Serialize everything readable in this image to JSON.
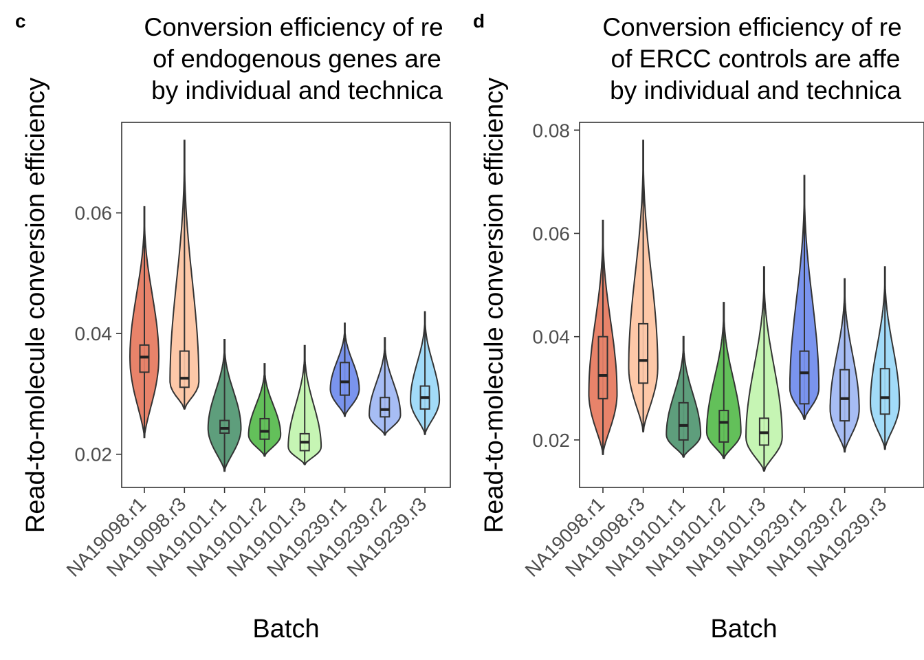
{
  "chart_data": [
    {
      "panel": "c",
      "type": "violin",
      "title_lines": [
        "Conversion efficiency of re",
        "of endogenous genes are",
        "by individual and technica"
      ],
      "xlabel": "Batch",
      "ylabel": "Read-to-molecule conversion efficiency",
      "ylim": [
        0.0145,
        0.075
      ],
      "yticks": [
        0.02,
        0.04,
        0.06
      ],
      "ytick_labels": [
        "0.02",
        "0.04",
        "0.06"
      ],
      "categories": [
        "NA19098.r1",
        "NA19098.r3",
        "NA19101.r1",
        "NA19101.r2",
        "NA19101.r3",
        "NA19239.r1",
        "NA19239.r2",
        "NA19239.r3"
      ],
      "colors": [
        "#E8836A",
        "#FDC8A8",
        "#5E9E7C",
        "#63C05A",
        "#C6F5B4",
        "#7A94EE",
        "#A7BDF4",
        "#A2DBF8"
      ],
      "series": [
        {
          "min": 0.0228,
          "max": 0.061,
          "q1": 0.0336,
          "median": 0.0361,
          "q3": 0.0381,
          "peak": 0.036,
          "width": 0.72
        },
        {
          "min": 0.0275,
          "max": 0.072,
          "q1": 0.0311,
          "median": 0.0326,
          "q3": 0.0371,
          "peak": 0.032,
          "width": 0.72
        },
        {
          "min": 0.0172,
          "max": 0.039,
          "q1": 0.0235,
          "median": 0.0243,
          "q3": 0.0256,
          "peak": 0.0243,
          "width": 0.82
        },
        {
          "min": 0.0197,
          "max": 0.035,
          "q1": 0.0225,
          "median": 0.0238,
          "q3": 0.0259,
          "peak": 0.0232,
          "width": 0.8
        },
        {
          "min": 0.0183,
          "max": 0.038,
          "q1": 0.0206,
          "median": 0.022,
          "q3": 0.0234,
          "peak": 0.0212,
          "width": 0.82
        },
        {
          "min": 0.0263,
          "max": 0.0417,
          "q1": 0.0298,
          "median": 0.032,
          "q3": 0.0352,
          "peak": 0.0308,
          "width": 0.72
        },
        {
          "min": 0.0232,
          "max": 0.0393,
          "q1": 0.0262,
          "median": 0.0274,
          "q3": 0.0294,
          "peak": 0.0265,
          "width": 0.78
        },
        {
          "min": 0.0233,
          "max": 0.0436,
          "q1": 0.0275,
          "median": 0.0294,
          "q3": 0.0313,
          "peak": 0.029,
          "width": 0.72
        }
      ]
    },
    {
      "panel": "d",
      "type": "violin",
      "title_lines": [
        "Conversion efficiency of re",
        "of ERCC controls are affe",
        "by individual and technica"
      ],
      "xlabel": "Batch",
      "ylabel": "Read-to-molecule conversion efficiency",
      "ylim": [
        0.0108,
        0.0815
      ],
      "yticks": [
        0.02,
        0.04,
        0.06,
        0.08
      ],
      "ytick_labels": [
        "0.02",
        "0.04",
        "0.06",
        "0.08"
      ],
      "categories": [
        "NA19098.r1",
        "NA19098.r3",
        "NA19101.r1",
        "NA19101.r2",
        "NA19101.r3",
        "NA19239.r1",
        "NA19239.r2",
        "NA19239.r3"
      ],
      "colors": [
        "#E8836A",
        "#FDC8A8",
        "#5E9E7C",
        "#63C05A",
        "#C6F5B4",
        "#7A94EE",
        "#A7BDF4",
        "#A2DBF8"
      ],
      "series": [
        {
          "min": 0.0172,
          "max": 0.0625,
          "q1": 0.028,
          "median": 0.0325,
          "q3": 0.04,
          "peak": 0.029,
          "width": 0.7
        },
        {
          "min": 0.0216,
          "max": 0.078,
          "q1": 0.031,
          "median": 0.0354,
          "q3": 0.0425,
          "peak": 0.034,
          "width": 0.72
        },
        {
          "min": 0.0167,
          "max": 0.04,
          "q1": 0.02,
          "median": 0.0228,
          "q3": 0.0272,
          "peak": 0.021,
          "width": 0.85
        },
        {
          "min": 0.0164,
          "max": 0.0466,
          "q1": 0.0196,
          "median": 0.0234,
          "q3": 0.0257,
          "peak": 0.0215,
          "width": 0.85
        },
        {
          "min": 0.014,
          "max": 0.0535,
          "q1": 0.019,
          "median": 0.0214,
          "q3": 0.0242,
          "peak": 0.0205,
          "width": 0.9
        },
        {
          "min": 0.024,
          "max": 0.0712,
          "q1": 0.027,
          "median": 0.033,
          "q3": 0.0372,
          "peak": 0.03,
          "width": 0.72
        },
        {
          "min": 0.0177,
          "max": 0.0512,
          "q1": 0.0237,
          "median": 0.028,
          "q3": 0.0336,
          "peak": 0.026,
          "width": 0.72
        },
        {
          "min": 0.0182,
          "max": 0.0535,
          "q1": 0.025,
          "median": 0.0282,
          "q3": 0.0338,
          "peak": 0.027,
          "width": 0.72
        }
      ]
    }
  ]
}
